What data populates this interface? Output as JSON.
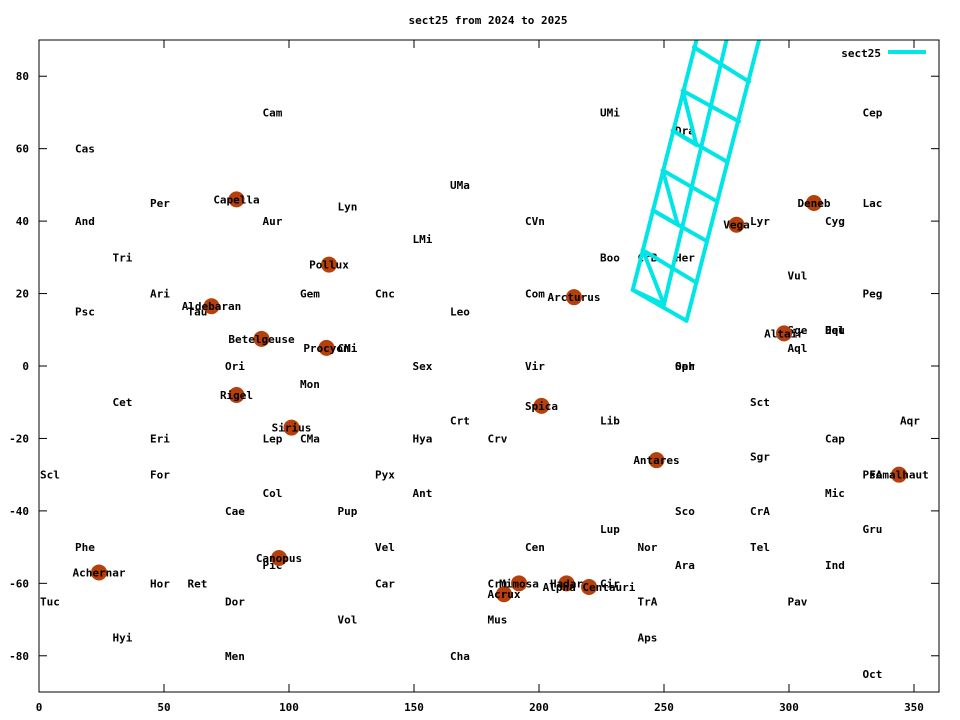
{
  "chart_data": {
    "type": "scatter",
    "title": "sect25 from 2024 to 2025",
    "xlabel": "",
    "ylabel": "",
    "xlim": [
      0,
      360
    ],
    "ylim": [
      -90,
      90
    ],
    "xticks": [
      0,
      50,
      100,
      150,
      200,
      250,
      300,
      350
    ],
    "yticks": [
      -80,
      -60,
      -40,
      -20,
      0,
      20,
      40,
      60,
      80
    ],
    "grid": false,
    "legend_position": "top-right",
    "series": [
      {
        "name": "sect25",
        "color": "#00e5e5",
        "segments": [
          [
            [
              237.5,
              21
            ],
            [
              263,
              90
            ]
          ],
          [
            [
              250,
              17
            ],
            [
              275,
              90
            ]
          ],
          [
            [
              259,
              12.5
            ],
            [
              288,
              90
            ]
          ],
          [
            [
              237.5,
              21
            ],
            [
              259,
              12.5
            ]
          ],
          [
            [
              241.5,
              32
            ],
            [
              263,
              23
            ]
          ],
          [
            [
              245.5,
              43
            ],
            [
              267,
              34.5
            ]
          ],
          [
            [
              249.5,
              54
            ],
            [
              271,
              45.5
            ]
          ],
          [
            [
              253.5,
              65
            ],
            [
              275,
              56.5
            ]
          ],
          [
            [
              257.5,
              76
            ],
            [
              280,
              67.5
            ]
          ],
          [
            [
              262,
              88
            ],
            [
              284,
              78.5
            ]
          ],
          [
            [
              237.5,
              21
            ],
            [
              250,
              17
            ]
          ],
          [
            [
              241.5,
              32
            ],
            [
              250,
              17
            ]
          ],
          [
            [
              245.5,
              43
            ],
            [
              255.5,
              39
            ]
          ],
          [
            [
              249.5,
              54
            ],
            [
              255.5,
              39
            ]
          ],
          [
            [
              253.5,
              65
            ],
            [
              263,
              61
            ]
          ],
          [
            [
              257.5,
              76
            ],
            [
              263,
              61
            ]
          ]
        ]
      }
    ],
    "stars": [
      {
        "name": "Capella",
        "x": 79,
        "y": 46
      },
      {
        "name": "Aldebaran",
        "x": 69,
        "y": 16.5
      },
      {
        "name": "Betelgeuse",
        "x": 89,
        "y": 7.5
      },
      {
        "name": "Rigel",
        "x": 79,
        "y": -8
      },
      {
        "name": "Pollux",
        "x": 116,
        "y": 28
      },
      {
        "name": "Procyon",
        "x": 115,
        "y": 5
      },
      {
        "name": "Sirius",
        "x": 101,
        "y": -17
      },
      {
        "name": "Canopus",
        "x": 96,
        "y": -53
      },
      {
        "name": "Achernar",
        "x": 24,
        "y": -57
      },
      {
        "name": "Arcturus",
        "x": 214,
        "y": 19
      },
      {
        "name": "Spica",
        "x": 201,
        "y": -11
      },
      {
        "name": "Mimosa",
        "x": 192,
        "y": -60
      },
      {
        "name": "Acrux",
        "x": 186,
        "y": -63
      },
      {
        "name": "Hadar",
        "x": 211,
        "y": -60
      },
      {
        "name": "Alpha Centauri",
        "x": 220,
        "y": -61
      },
      {
        "name": "Antares",
        "x": 247,
        "y": -26
      },
      {
        "name": "Vega",
        "x": 279,
        "y": 39
      },
      {
        "name": "Deneb",
        "x": 310,
        "y": 45
      },
      {
        "name": "Altair",
        "x": 298,
        "y": 9
      },
      {
        "name": "Fomalhaut",
        "x": 344,
        "y": -30
      }
    ],
    "constellations": [
      {
        "name": "Cam",
        "x": 89,
        "y": 70
      },
      {
        "name": "UMi",
        "x": 224,
        "y": 70
      },
      {
        "name": "Cep",
        "x": 329,
        "y": 70
      },
      {
        "name": "Cas",
        "x": 14,
        "y": 60
      },
      {
        "name": "Dra",
        "x": 254,
        "y": 65
      },
      {
        "name": "UMa",
        "x": 164,
        "y": 50
      },
      {
        "name": "Per",
        "x": 44,
        "y": 45
      },
      {
        "name": "Lyn",
        "x": 119,
        "y": 44
      },
      {
        "name": "Lac",
        "x": 329,
        "y": 45
      },
      {
        "name": "And",
        "x": 14,
        "y": 40
      },
      {
        "name": "Aur",
        "x": 89,
        "y": 40
      },
      {
        "name": "CVn",
        "x": 194,
        "y": 40
      },
      {
        "name": "Lyr",
        "x": 284,
        "y": 40
      },
      {
        "name": "Cyg",
        "x": 314,
        "y": 40
      },
      {
        "name": "LMi",
        "x": 149,
        "y": 35
      },
      {
        "name": "Tri",
        "x": 29,
        "y": 30
      },
      {
        "name": "Boo",
        "x": 224,
        "y": 30
      },
      {
        "name": "CrB",
        "x": 239,
        "y": 30
      },
      {
        "name": "Her",
        "x": 254,
        "y": 30
      },
      {
        "name": "Vul",
        "x": 299,
        "y": 25
      },
      {
        "name": "Ari",
        "x": 44,
        "y": 20
      },
      {
        "name": "Gem",
        "x": 104,
        "y": 20
      },
      {
        "name": "Cnc",
        "x": 134,
        "y": 20
      },
      {
        "name": "Com",
        "x": 194,
        "y": 20
      },
      {
        "name": "Peg",
        "x": 329,
        "y": 20
      },
      {
        "name": "Psc",
        "x": 14,
        "y": 15
      },
      {
        "name": "Tau",
        "x": 59,
        "y": 15
      },
      {
        "name": "Leo",
        "x": 164,
        "y": 15
      },
      {
        "name": "Sge",
        "x": 299,
        "y": 10
      },
      {
        "name": "Equ",
        "x": 314,
        "y": 10
      },
      {
        "name": "Del",
        "x": 314,
        "y": 10
      },
      {
        "name": "CMi",
        "x": 119,
        "y": 5
      },
      {
        "name": "Aql",
        "x": 299,
        "y": 5
      },
      {
        "name": "Ori",
        "x": 74,
        "y": 0
      },
      {
        "name": "Sex",
        "x": 149,
        "y": 0
      },
      {
        "name": "Vir",
        "x": 194,
        "y": 0
      },
      {
        "name": "Oph",
        "x": 254,
        "y": 0
      },
      {
        "name": "Ser",
        "x": 254,
        "y": 0
      },
      {
        "name": "Mon",
        "x": 104,
        "y": -5
      },
      {
        "name": "Cet",
        "x": 29,
        "y": -10
      },
      {
        "name": "Sct",
        "x": 284,
        "y": -10
      },
      {
        "name": "Crt",
        "x": 164,
        "y": -15
      },
      {
        "name": "Lib",
        "x": 224,
        "y": -15
      },
      {
        "name": "Aqr",
        "x": 344,
        "y": -15
      },
      {
        "name": "Eri",
        "x": 44,
        "y": -20
      },
      {
        "name": "Lep",
        "x": 89,
        "y": -20
      },
      {
        "name": "CMa",
        "x": 104,
        "y": -20
      },
      {
        "name": "Hya",
        "x": 149,
        "y": -20
      },
      {
        "name": "Crv",
        "x": 179,
        "y": -20
      },
      {
        "name": "Cap",
        "x": 314,
        "y": -20
      },
      {
        "name": "Sgr",
        "x": 284,
        "y": -25
      },
      {
        "name": "Scl",
        "x": 0,
        "y": -30
      },
      {
        "name": "For",
        "x": 44,
        "y": -30
      },
      {
        "name": "Pyx",
        "x": 134,
        "y": -30
      },
      {
        "name": "PsA",
        "x": 329,
        "y": -30
      },
      {
        "name": "Col",
        "x": 89,
        "y": -35
      },
      {
        "name": "Ant",
        "x": 149,
        "y": -35
      },
      {
        "name": "Mic",
        "x": 314,
        "y": -35
      },
      {
        "name": "Cae",
        "x": 74,
        "y": -40
      },
      {
        "name": "Pup",
        "x": 119,
        "y": -40
      },
      {
        "name": "Sco",
        "x": 254,
        "y": -40
      },
      {
        "name": "CrA",
        "x": 284,
        "y": -40
      },
      {
        "name": "Lup",
        "x": 224,
        "y": -45
      },
      {
        "name": "Gru",
        "x": 329,
        "y": -45
      },
      {
        "name": "Phe",
        "x": 14,
        "y": -50
      },
      {
        "name": "Vel",
        "x": 134,
        "y": -50
      },
      {
        "name": "Cen",
        "x": 194,
        "y": -50
      },
      {
        "name": "Nor",
        "x": 239,
        "y": -50
      },
      {
        "name": "Tel",
        "x": 284,
        "y": -50
      },
      {
        "name": "Pic",
        "x": 89,
        "y": -55
      },
      {
        "name": "Ara",
        "x": 254,
        "y": -55
      },
      {
        "name": "Ind",
        "x": 314,
        "y": -55
      },
      {
        "name": "Hor",
        "x": 44,
        "y": -60
      },
      {
        "name": "Ret",
        "x": 59,
        "y": -60
      },
      {
        "name": "Car",
        "x": 134,
        "y": -60
      },
      {
        "name": "Cru",
        "x": 179,
        "y": -60
      },
      {
        "name": "Cir",
        "x": 224,
        "y": -60
      },
      {
        "name": "Tuc",
        "x": 0,
        "y": -65
      },
      {
        "name": "Dor",
        "x": 74,
        "y": -65
      },
      {
        "name": "TrA",
        "x": 239,
        "y": -65
      },
      {
        "name": "Pav",
        "x": 299,
        "y": -65
      },
      {
        "name": "Vol",
        "x": 119,
        "y": -70
      },
      {
        "name": "Mus",
        "x": 179,
        "y": -70
      },
      {
        "name": "Hyi",
        "x": 29,
        "y": -75
      },
      {
        "name": "Aps",
        "x": 239,
        "y": -75
      },
      {
        "name": "Men",
        "x": 74,
        "y": -80
      },
      {
        "name": "Cha",
        "x": 164,
        "y": -80
      },
      {
        "name": "Oct",
        "x": 329,
        "y": -85
      }
    ]
  }
}
